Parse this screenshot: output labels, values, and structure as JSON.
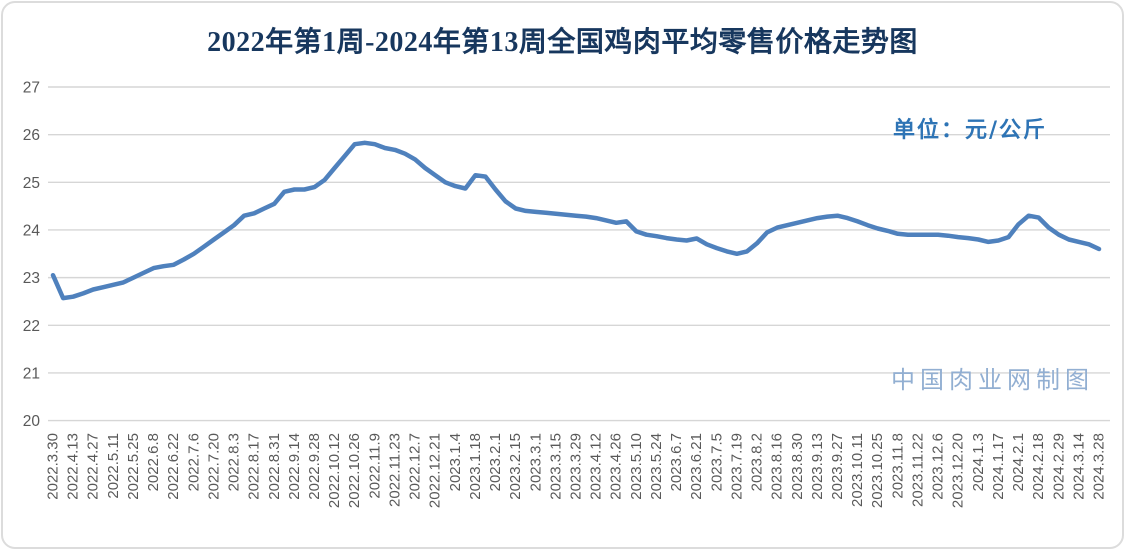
{
  "page": {
    "background": "#ffffff",
    "frame_border_color": "#dcdcdc"
  },
  "chart": {
    "title": "2022年第1周-2024年第13周全国鸡肉平均零售价格走势图",
    "title_color": "#17375E",
    "unit_label": "单位：元/公斤",
    "unit_color": "#2E74B5",
    "watermark": "中国肉业网制图",
    "watermark_color": "#92AFD2"
  },
  "chart_data": {
    "type": "line",
    "title": "2022年第1周-2024年第13周全国鸡肉平均零售价格走势图",
    "ylabel": "元/公斤",
    "xlabel": "",
    "ylim": [
      20,
      27
    ],
    "yticks": [
      20,
      21,
      22,
      23,
      24,
      25,
      26,
      27
    ],
    "grid": true,
    "legend": false,
    "line_color": "#4F81BD",
    "line_width": 4.5,
    "gridline_color": "#D6D6D6",
    "axis_text_color": "#595959",
    "x_note": "weekly series; axis labels shown every second week",
    "categories": [
      "2022.3.30",
      "2022.4.13",
      "2022.4.27",
      "2022.5.11",
      "2022.5.25",
      "2022.6.8",
      "2022.6.22",
      "2022.7.6",
      "2022.7.20",
      "2022.8.3",
      "2022.8.17",
      "2022.8.31",
      "2022.9.14",
      "2022.9.28",
      "2022.10.12",
      "2022.10.26",
      "2022.11.9",
      "2022.11.23",
      "2022.12.7",
      "2022.12.21",
      "2023.1.4",
      "2023.1.18",
      "2023.2.1",
      "2023.2.15",
      "2023.3.1",
      "2023.3.15",
      "2023.3.29",
      "2023.4.12",
      "2023.4.26",
      "2023.5.10",
      "2023.5.24",
      "2023.6.7",
      "2023.6.21",
      "2023.7.5",
      "2023.7.19",
      "2023.8.2",
      "2023.8.16",
      "2023.8.30",
      "2023.9.13",
      "2023.9.27",
      "2023.10.11",
      "2023.10.25",
      "2023.11.8",
      "2023.11.22",
      "2023.12.6",
      "2023.12.20",
      "2024.1.3",
      "2024.1.17",
      "2024.2.1",
      "2024.2.18",
      "2024.2.29",
      "2024.3.14",
      "2024.3.28"
    ],
    "values": [
      23.05,
      22.57,
      22.6,
      22.67,
      22.75,
      22.8,
      22.85,
      22.9,
      23.0,
      23.1,
      23.2,
      23.24,
      23.27,
      23.38,
      23.5,
      23.65,
      23.8,
      23.95,
      24.1,
      24.3,
      24.35,
      24.45,
      24.55,
      24.8,
      24.85,
      24.85,
      24.9,
      25.05,
      25.3,
      25.55,
      25.8,
      25.83,
      25.8,
      25.72,
      25.68,
      25.6,
      25.48,
      25.3,
      25.15,
      25.0,
      24.92,
      24.87,
      25.15,
      25.12,
      24.85,
      24.6,
      24.45,
      24.4,
      24.38,
      24.36,
      24.34,
      24.32,
      24.3,
      24.28,
      24.25,
      24.2,
      24.15,
      24.18,
      23.97,
      23.9,
      23.87,
      23.83,
      23.8,
      23.78,
      23.82,
      23.7,
      23.62,
      23.55,
      23.5,
      23.55,
      23.72,
      23.95,
      24.05,
      24.1,
      24.15,
      24.2,
      24.25,
      24.28,
      24.3,
      24.25,
      24.18,
      24.1,
      24.03,
      23.98,
      23.92,
      23.9,
      23.9,
      23.9,
      23.9,
      23.88,
      23.85,
      23.83,
      23.8,
      23.75,
      23.78,
      23.85,
      24.12,
      24.3,
      24.26,
      24.05,
      23.9,
      23.8,
      23.75,
      23.7,
      23.6
    ]
  }
}
